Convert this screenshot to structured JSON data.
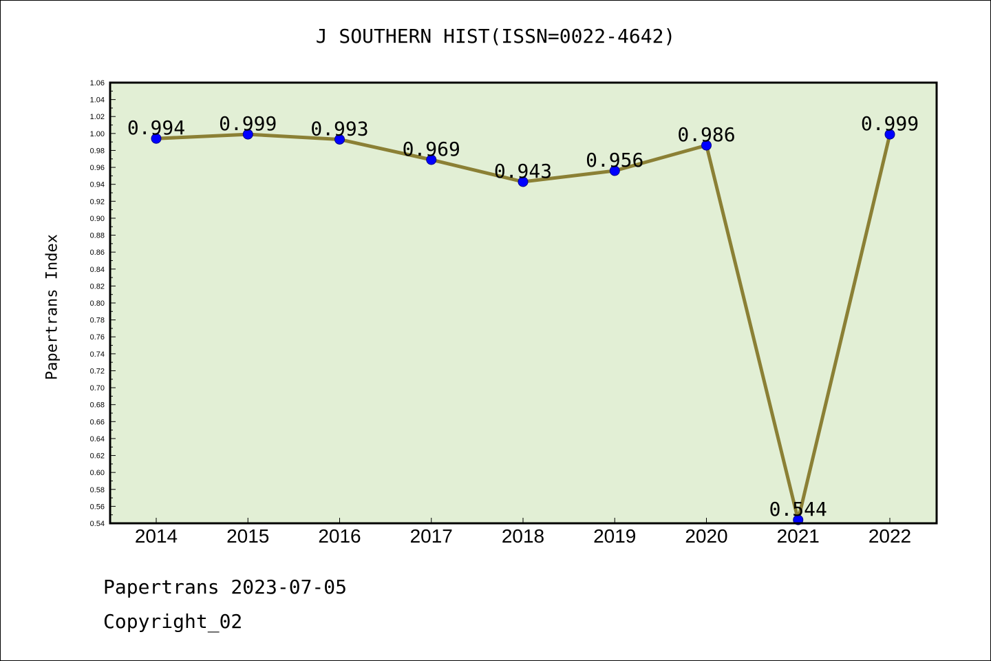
{
  "chart_data": {
    "type": "line",
    "title": "J SOUTHERN HIST(ISSN=0022-4642)",
    "xlabel": "",
    "ylabel": "Papertrans Index",
    "categories": [
      "2014",
      "2015",
      "2016",
      "2017",
      "2018",
      "2019",
      "2020",
      "2021",
      "2022"
    ],
    "series": [
      {
        "values": [
          0.994,
          0.999,
          0.993,
          0.969,
          0.943,
          0.956,
          0.986,
          0.544,
          0.999
        ]
      }
    ],
    "data_labels": [
      "0.994",
      "0.999",
      "0.993",
      "0.969",
      "0.943",
      "0.956",
      "0.986",
      "0.544",
      "0.999"
    ],
    "ylim": [
      0.54,
      1.06
    ],
    "yticks": [
      "0.54",
      "0.56",
      "0.58",
      "0.60",
      "0.62",
      "0.64",
      "0.66",
      "0.68",
      "0.70",
      "0.72",
      "0.74",
      "0.76",
      "0.78",
      "0.80",
      "0.82",
      "0.84",
      "0.86",
      "0.88",
      "0.90",
      "0.92",
      "0.94",
      "0.96",
      "0.98",
      "1.00",
      "1.02",
      "1.04",
      "1.06"
    ],
    "grid": false,
    "colors": {
      "plot_background": "#e2efd5",
      "line": "#8b8035",
      "marker": "#0000ff"
    }
  },
  "footer": {
    "line1": "Papertrans 2023-07-05",
    "line2": "Copyright_02"
  }
}
